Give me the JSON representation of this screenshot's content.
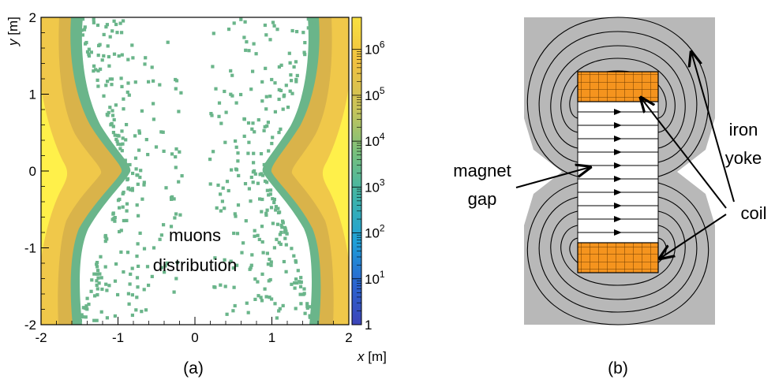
{
  "panel_a": {
    "caption": "(a)",
    "overlay_text": [
      "muons",
      "distribution"
    ],
    "xlabel": {
      "var": "x",
      "unit": " [m]"
    },
    "ylabel": {
      "var": "y",
      "unit": " [m]"
    },
    "xticks": [
      "-2",
      "-1",
      "0",
      "1",
      "2"
    ],
    "yticks": [
      "-2",
      "-1",
      "0",
      "1",
      "2"
    ],
    "colorbar": {
      "labels": [
        {
          "base": "1",
          "exp": ""
        },
        {
          "base": "10",
          "exp": "1"
        },
        {
          "base": "10",
          "exp": "2"
        },
        {
          "base": "10",
          "exp": "3"
        },
        {
          "base": "10",
          "exp": "4"
        },
        {
          "base": "10",
          "exp": "5"
        },
        {
          "base": "10",
          "exp": "6"
        }
      ],
      "colors": [
        "#3d44b8",
        "#2a64d0",
        "#1ea0d8",
        "#3fb4a8",
        "#78c07c",
        "#c8c45a",
        "#f0c040",
        "#f8e040"
      ]
    },
    "colors": {
      "sparse": "#6ab58a",
      "edge": "#d9b34a",
      "core": "#f5d94a",
      "bright": "#fff04a"
    }
  },
  "chart_data": {
    "type": "heatmap",
    "title": "",
    "xlabel": "x [m]",
    "ylabel": "y [m]",
    "xlim": [
      -2,
      2
    ],
    "ylim": [
      -2,
      2
    ],
    "z_scale": "log",
    "zlim": [
      1,
      5000000
    ],
    "grid": false,
    "colorbar_position": "right"
  },
  "panel_b": {
    "caption": "(b)",
    "labels": {
      "magnet_gap": [
        "magnet",
        "gap"
      ],
      "iron_yoke": [
        "iron",
        "yoke"
      ],
      "coil": "coil"
    },
    "colors": {
      "yoke": "#b8b8b8",
      "coil": "#f5941e",
      "gap": "#ffffff",
      "line": "#000000"
    }
  }
}
